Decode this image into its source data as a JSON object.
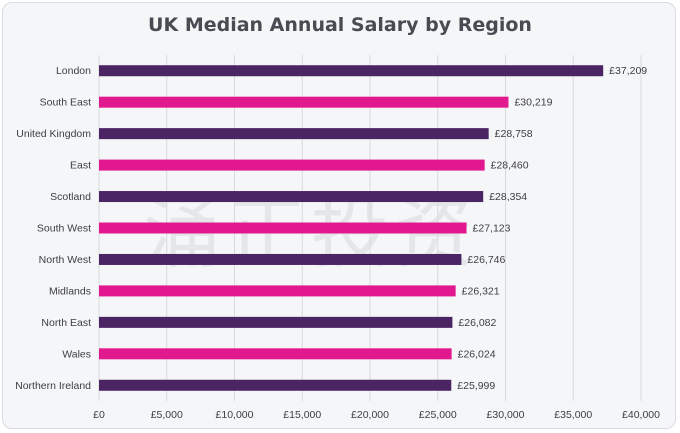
{
  "title": "UK Median Annual Salary by Region",
  "watermark_text": "涌正投资",
  "colors": {
    "purple": "#4b2463",
    "pink": "#e2188e",
    "grid": "#d7d9de",
    "label": "#3d3d45"
  },
  "chart_data": {
    "type": "bar",
    "orientation": "horizontal",
    "title": "UK Median Annual Salary by Region",
    "categories": [
      "London",
      "South East",
      "United Kingdom",
      "East",
      "Scotland",
      "South West",
      "North West",
      "Midlands",
      "North East",
      "Wales",
      "Northern Ireland"
    ],
    "values": [
      37209,
      30219,
      28758,
      28460,
      28354,
      27123,
      26746,
      26321,
      26082,
      26024,
      25999
    ],
    "value_labels": [
      "£37,209",
      "£30,219",
      "£28,758",
      "£28,460",
      "£28,354",
      "£27,123",
      "£26,746",
      "£26,321",
      "£26,082",
      "£26,024",
      "£25,999"
    ],
    "bar_colors": [
      "#4b2463",
      "#e2188e",
      "#4b2463",
      "#e2188e",
      "#4b2463",
      "#e2188e",
      "#4b2463",
      "#e2188e",
      "#4b2463",
      "#e2188e",
      "#4b2463"
    ],
    "xlim": [
      0,
      40000
    ],
    "xticks": [
      0,
      5000,
      10000,
      15000,
      20000,
      25000,
      30000,
      35000,
      40000
    ],
    "xtick_labels": [
      "£0",
      "£5,000",
      "£10,000",
      "£15,000",
      "£20,000",
      "£25,000",
      "£30,000",
      "£35,000",
      "£40,000"
    ],
    "grid": true,
    "legend": "none"
  }
}
